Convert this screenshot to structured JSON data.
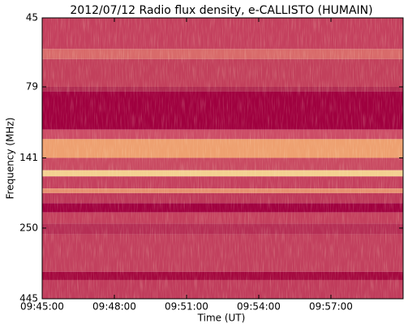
{
  "chart_data": {
    "type": "spectrogram",
    "title": "2012/07/12  Radio flux density, e-CALLISTO (HUMAIN)",
    "xlabel": "Time (UT)",
    "ylabel": "Frequency (MHz)",
    "xlim": [
      "09:45:00",
      "10:00:00"
    ],
    "xticks": [
      "09:45:00",
      "09:48:00",
      "09:51:00",
      "09:54:00",
      "09:57:00"
    ],
    "ylim": [
      45,
      445
    ],
    "yscale": "log",
    "yinverted": true,
    "yticks": [
      45,
      79,
      141,
      250,
      445
    ],
    "bands": [
      {
        "from": 45,
        "to": 58,
        "color": "#c4405e"
      },
      {
        "from": 58,
        "to": 63,
        "color": "#d86a6a"
      },
      {
        "from": 63,
        "to": 79,
        "color": "#c2405c"
      },
      {
        "from": 79,
        "to": 82,
        "color": "#b02c52"
      },
      {
        "from": 82,
        "to": 112,
        "color": "#a0003f"
      },
      {
        "from": 112,
        "to": 121,
        "color": "#cc4c66"
      },
      {
        "from": 121,
        "to": 141,
        "color": "#eea070"
      },
      {
        "from": 141,
        "to": 156,
        "color": "#c94a62"
      },
      {
        "from": 156,
        "to": 164,
        "color": "#f3d090"
      },
      {
        "from": 164,
        "to": 181,
        "color": "#c4405e"
      },
      {
        "from": 181,
        "to": 188,
        "color": "#e69070"
      },
      {
        "from": 188,
        "to": 204,
        "color": "#be385a"
      },
      {
        "from": 204,
        "to": 220,
        "color": "#a0003f"
      },
      {
        "from": 220,
        "to": 241,
        "color": "#c4405e"
      },
      {
        "from": 241,
        "to": 263,
        "color": "#b52e55"
      },
      {
        "from": 263,
        "to": 357,
        "color": "#c2405e"
      },
      {
        "from": 357,
        "to": 382,
        "color": "#a4083f"
      },
      {
        "from": 382,
        "to": 445,
        "color": "#c03c5c"
      }
    ]
  }
}
